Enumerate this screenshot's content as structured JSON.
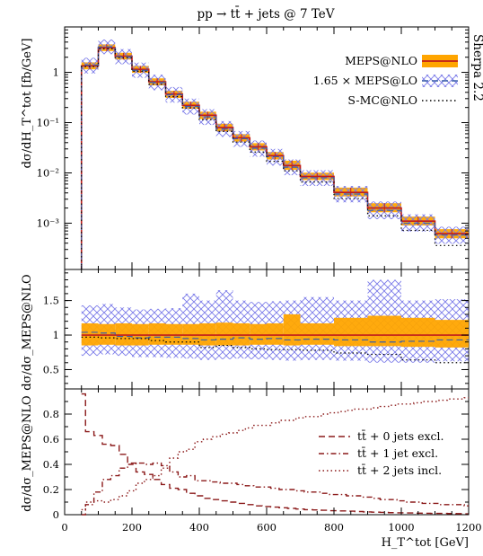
{
  "chart_data": [
    {
      "panel": "main",
      "type": "line",
      "title": "pp → tt̄ + jets @ 7 TeV",
      "side_label": "Sherpa 2.2",
      "xlabel": "H_T^tot [GeV]",
      "ylabel": "dσ/dH_T^tot [fb/GeV]",
      "xlim": [
        0,
        1200
      ],
      "ylim": [
        0.00012,
        8
      ],
      "yscale": "log",
      "legend_position": "top-right",
      "y_tick_labels": [
        "1",
        "10⁻¹",
        "10⁻²",
        "10⁻³"
      ],
      "bin_edges": [
        50,
        100,
        150,
        200,
        250,
        300,
        350,
        400,
        450,
        500,
        550,
        600,
        650,
        700,
        800,
        900,
        1000,
        1100,
        1200
      ],
      "series": [
        {
          "name": "MEPS@NLO",
          "style": "solid",
          "color": "#c01c1c",
          "band_color": "#ffa500",
          "values": [
            1.35,
            3.1,
            2.1,
            1.15,
            0.65,
            0.37,
            0.22,
            0.14,
            0.08,
            0.05,
            0.033,
            0.022,
            0.014,
            0.0085,
            0.0041,
            0.002,
            0.0011,
            0.00062
          ],
          "band_low": [
            1.15,
            2.65,
            1.8,
            0.98,
            0.55,
            0.31,
            0.19,
            0.118,
            0.067,
            0.042,
            0.028,
            0.0185,
            0.0115,
            0.0072,
            0.0034,
            0.00165,
            0.0009,
            0.0005
          ],
          "band_high": [
            1.58,
            3.6,
            2.45,
            1.34,
            0.76,
            0.43,
            0.26,
            0.165,
            0.095,
            0.059,
            0.039,
            0.026,
            0.0175,
            0.0101,
            0.0051,
            0.0025,
            0.00135,
            0.00076
          ]
        },
        {
          "name": "1.65 × MEPS@LO",
          "style": "dashed",
          "color": "#3a5fa8",
          "band_color": "#8a8ae6",
          "values": [
            1.4,
            3.2,
            2.05,
            1.1,
            0.63,
            0.36,
            0.21,
            0.13,
            0.075,
            0.048,
            0.031,
            0.021,
            0.013,
            0.008,
            0.0038,
            0.0018,
            0.001,
            0.00058
          ],
          "band_low": [
            0.95,
            2.3,
            1.45,
            0.78,
            0.44,
            0.25,
            0.145,
            0.09,
            0.052,
            0.033,
            0.021,
            0.014,
            0.009,
            0.0055,
            0.0026,
            0.0012,
            0.00068,
            0.00039
          ],
          "band_high": [
            1.95,
            4.5,
            2.9,
            1.56,
            0.9,
            0.51,
            0.3,
            0.185,
            0.107,
            0.068,
            0.044,
            0.03,
            0.0185,
            0.0113,
            0.0055,
            0.0027,
            0.0015,
            0.00085
          ]
        },
        {
          "name": "S-MC@NLO",
          "style": "dotted",
          "color": "#000000",
          "values": [
            1.3,
            2.95,
            1.95,
            1.05,
            0.58,
            0.33,
            0.195,
            0.115,
            0.067,
            0.041,
            0.026,
            0.017,
            0.011,
            0.0066,
            0.0031,
            0.0014,
            0.00072,
            0.00036
          ]
        }
      ]
    },
    {
      "panel": "ratio",
      "type": "line",
      "ylabel": "dσ/dσ_MEPS@NLO",
      "xlim": [
        0,
        1200
      ],
      "ylim": [
        0.22,
        1.95
      ],
      "y_tick_labels": [
        "0.5",
        "1",
        "1.5"
      ],
      "bin_edges": [
        50,
        100,
        150,
        200,
        250,
        300,
        350,
        400,
        450,
        500,
        550,
        600,
        650,
        700,
        800,
        900,
        1000,
        1100,
        1200
      ],
      "series": [
        {
          "name": "MEPS@NLO",
          "values": [
            1,
            1,
            1,
            1,
            1,
            1,
            1,
            1,
            1,
            1,
            1,
            1,
            1,
            1,
            1,
            1,
            1,
            1
          ],
          "band_low": [
            0.85,
            0.86,
            0.85,
            0.85,
            0.86,
            0.86,
            0.86,
            0.85,
            0.85,
            0.85,
            0.86,
            0.86,
            0.85,
            0.86,
            0.84,
            0.84,
            0.83,
            0.82
          ],
          "band_high": [
            1.17,
            1.16,
            1.17,
            1.16,
            1.17,
            1.16,
            1.16,
            1.17,
            1.18,
            1.17,
            1.16,
            1.17,
            1.3,
            1.17,
            1.25,
            1.28,
            1.25,
            1.22
          ]
        },
        {
          "name": "1.65 × MEPS@LO",
          "values": [
            1.04,
            1.03,
            0.98,
            0.96,
            0.97,
            0.97,
            0.95,
            0.93,
            0.94,
            0.96,
            0.94,
            0.95,
            0.93,
            0.94,
            0.93,
            0.9,
            0.91,
            0.93
          ],
          "band_low": [
            0.7,
            0.72,
            0.7,
            0.68,
            0.68,
            0.67,
            0.66,
            0.64,
            0.65,
            0.66,
            0.65,
            0.64,
            0.63,
            0.64,
            0.63,
            0.6,
            0.6,
            0.62
          ],
          "band_high": [
            1.43,
            1.45,
            1.4,
            1.37,
            1.38,
            1.39,
            1.6,
            1.5,
            1.65,
            1.5,
            1.48,
            1.49,
            1.5,
            1.55,
            1.5,
            1.8,
            1.5,
            1.52
          ]
        },
        {
          "name": "S-MC@NLO",
          "values": [
            0.97,
            0.96,
            0.95,
            0.95,
            0.92,
            0.9,
            0.9,
            0.82,
            0.85,
            0.82,
            0.8,
            0.79,
            0.79,
            0.78,
            0.74,
            0.72,
            0.64,
            0.6
          ]
        }
      ]
    },
    {
      "panel": "fractions",
      "type": "line",
      "ylabel": "dσ/dσ_MEPS@NLO",
      "xlabel": "H_T^tot [GeV]",
      "xlim": [
        0,
        1200
      ],
      "ylim": [
        0,
        1
      ],
      "x_tick_labels": [
        "0",
        "200",
        "400",
        "600",
        "800",
        "1000",
        "1200"
      ],
      "y_tick_labels": [
        "0",
        "0.2",
        "0.4",
        "0.6",
        "0.8"
      ],
      "legend_position": "right",
      "color": "#8b1a1a",
      "series": [
        {
          "name": "tt̄ + 0 jets excl.",
          "style": "dashed",
          "x": [
            50,
            62,
            87,
            112,
            137,
            162,
            187,
            212,
            237,
            262,
            287,
            312,
            337,
            362,
            387,
            412,
            437,
            462,
            487,
            512,
            537,
            562,
            587,
            612,
            637,
            662,
            687,
            712,
            737,
            762,
            787,
            812,
            837,
            862,
            887,
            912,
            937,
            962,
            987,
            1012,
            1037,
            1062,
            1087,
            1112,
            1137,
            1162,
            1187,
            1200
          ],
          "y": [
            0.96,
            0.66,
            0.63,
            0.56,
            0.55,
            0.48,
            0.41,
            0.34,
            0.32,
            0.28,
            0.24,
            0.21,
            0.2,
            0.17,
            0.15,
            0.13,
            0.12,
            0.11,
            0.1,
            0.09,
            0.08,
            0.07,
            0.065,
            0.06,
            0.055,
            0.05,
            0.045,
            0.04,
            0.038,
            0.035,
            0.032,
            0.03,
            0.028,
            0.025,
            0.022,
            0.02,
            0.018,
            0.016,
            0.015,
            0.014,
            0.012,
            0.011,
            0.01,
            0.01,
            0.009,
            0.008,
            0.007,
            0.007
          ]
        },
        {
          "name": "tt̄ + 1 jet   excl.",
          "style": "dash-dot",
          "x": [
            50,
            62,
            87,
            112,
            137,
            162,
            187,
            212,
            237,
            262,
            287,
            312,
            337,
            362,
            387,
            412,
            437,
            462,
            487,
            512,
            537,
            562,
            587,
            612,
            637,
            662,
            687,
            712,
            737,
            762,
            787,
            812,
            837,
            862,
            887,
            912,
            937,
            962,
            987,
            1012,
            1037,
            1062,
            1087,
            1112,
            1137,
            1162,
            1187,
            1200
          ],
          "y": [
            0.0,
            0.08,
            0.18,
            0.28,
            0.31,
            0.37,
            0.4,
            0.41,
            0.4,
            0.41,
            0.39,
            0.34,
            0.3,
            0.31,
            0.27,
            0.27,
            0.26,
            0.25,
            0.25,
            0.24,
            0.23,
            0.22,
            0.22,
            0.21,
            0.2,
            0.2,
            0.19,
            0.18,
            0.18,
            0.17,
            0.16,
            0.16,
            0.15,
            0.15,
            0.14,
            0.13,
            0.12,
            0.12,
            0.11,
            0.1,
            0.1,
            0.09,
            0.09,
            0.08,
            0.08,
            0.08,
            0.07,
            0.07
          ]
        },
        {
          "name": "tt̄ + 2 jets incl.",
          "style": "dotted",
          "x": [
            50,
            62,
            87,
            112,
            137,
            162,
            187,
            212,
            237,
            262,
            287,
            312,
            337,
            362,
            387,
            412,
            437,
            462,
            487,
            512,
            537,
            562,
            587,
            612,
            637,
            662,
            687,
            712,
            737,
            762,
            787,
            812,
            837,
            862,
            887,
            912,
            937,
            962,
            987,
            1012,
            1037,
            1062,
            1087,
            1112,
            1137,
            1162,
            1187,
            1200
          ],
          "y": [
            0.04,
            0.1,
            0.11,
            0.1,
            0.12,
            0.15,
            0.19,
            0.25,
            0.28,
            0.31,
            0.37,
            0.45,
            0.5,
            0.52,
            0.58,
            0.6,
            0.62,
            0.64,
            0.65,
            0.67,
            0.69,
            0.71,
            0.71,
            0.73,
            0.75,
            0.75,
            0.77,
            0.78,
            0.78,
            0.8,
            0.81,
            0.82,
            0.83,
            0.84,
            0.84,
            0.85,
            0.86,
            0.87,
            0.88,
            0.88,
            0.89,
            0.9,
            0.9,
            0.91,
            0.92,
            0.92,
            0.93,
            0.93
          ]
        }
      ]
    }
  ]
}
